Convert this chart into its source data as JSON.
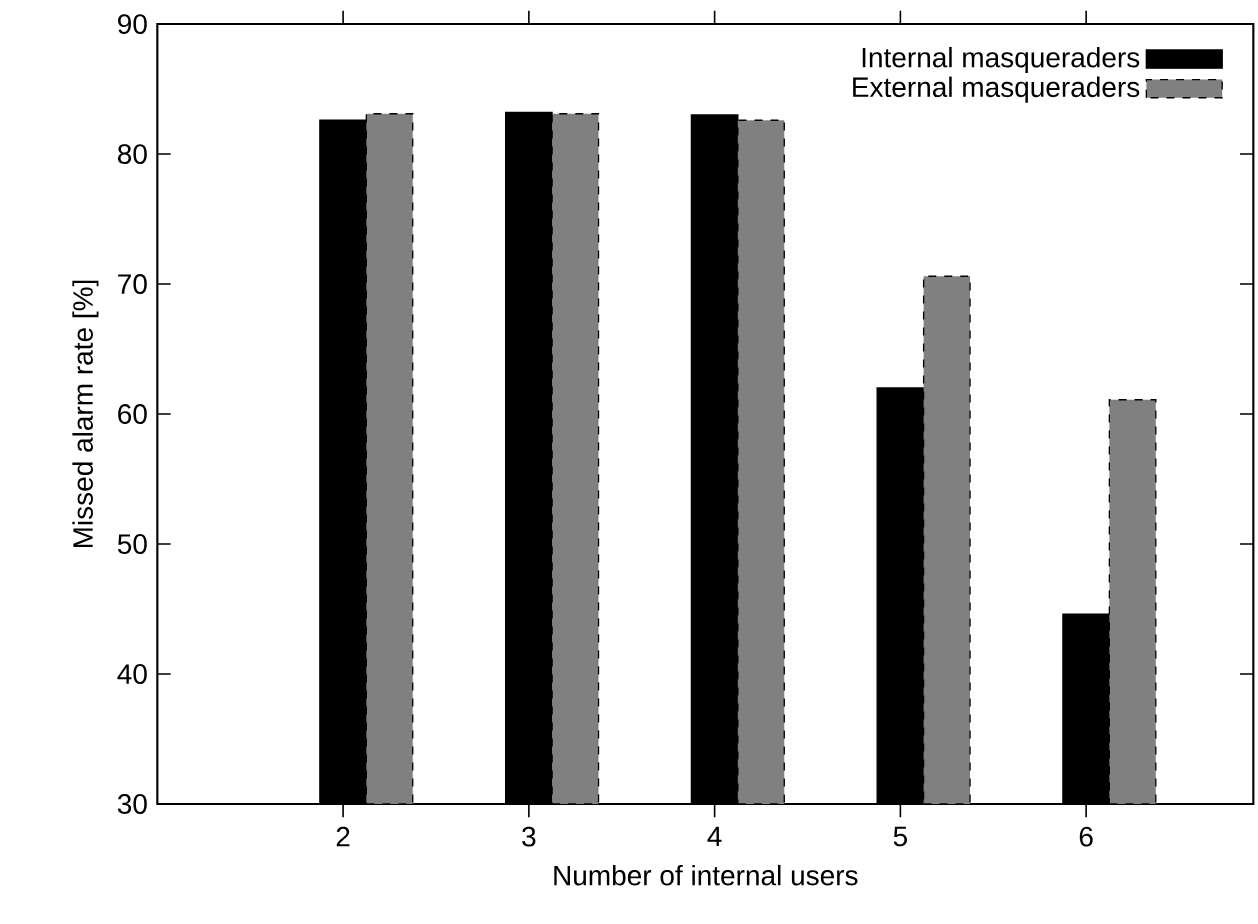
{
  "chart_data": {
    "type": "bar",
    "xlabel": "Number of internal users",
    "ylabel": "Missed alarm rate [%]",
    "x": [
      2,
      3,
      4,
      5,
      6
    ],
    "series": [
      {
        "name": "Internal masqueraders",
        "color": "#000000",
        "line_style": "solid",
        "values": [
          82.6,
          83.2,
          83.0,
          62.0,
          44.6
        ]
      },
      {
        "name": "External masqueraders",
        "color": "#808080",
        "line_style": "dashed",
        "values": [
          83.1,
          83.1,
          82.6,
          70.6,
          61.1
        ]
      }
    ],
    "xlim": [
      1,
      6.9
    ],
    "xticks": [
      2,
      3,
      4,
      5,
      6
    ],
    "ylim": [
      30,
      90
    ],
    "yticks": [
      30,
      40,
      50,
      60,
      70,
      80,
      90
    ],
    "grid": false,
    "legend": "top right"
  }
}
